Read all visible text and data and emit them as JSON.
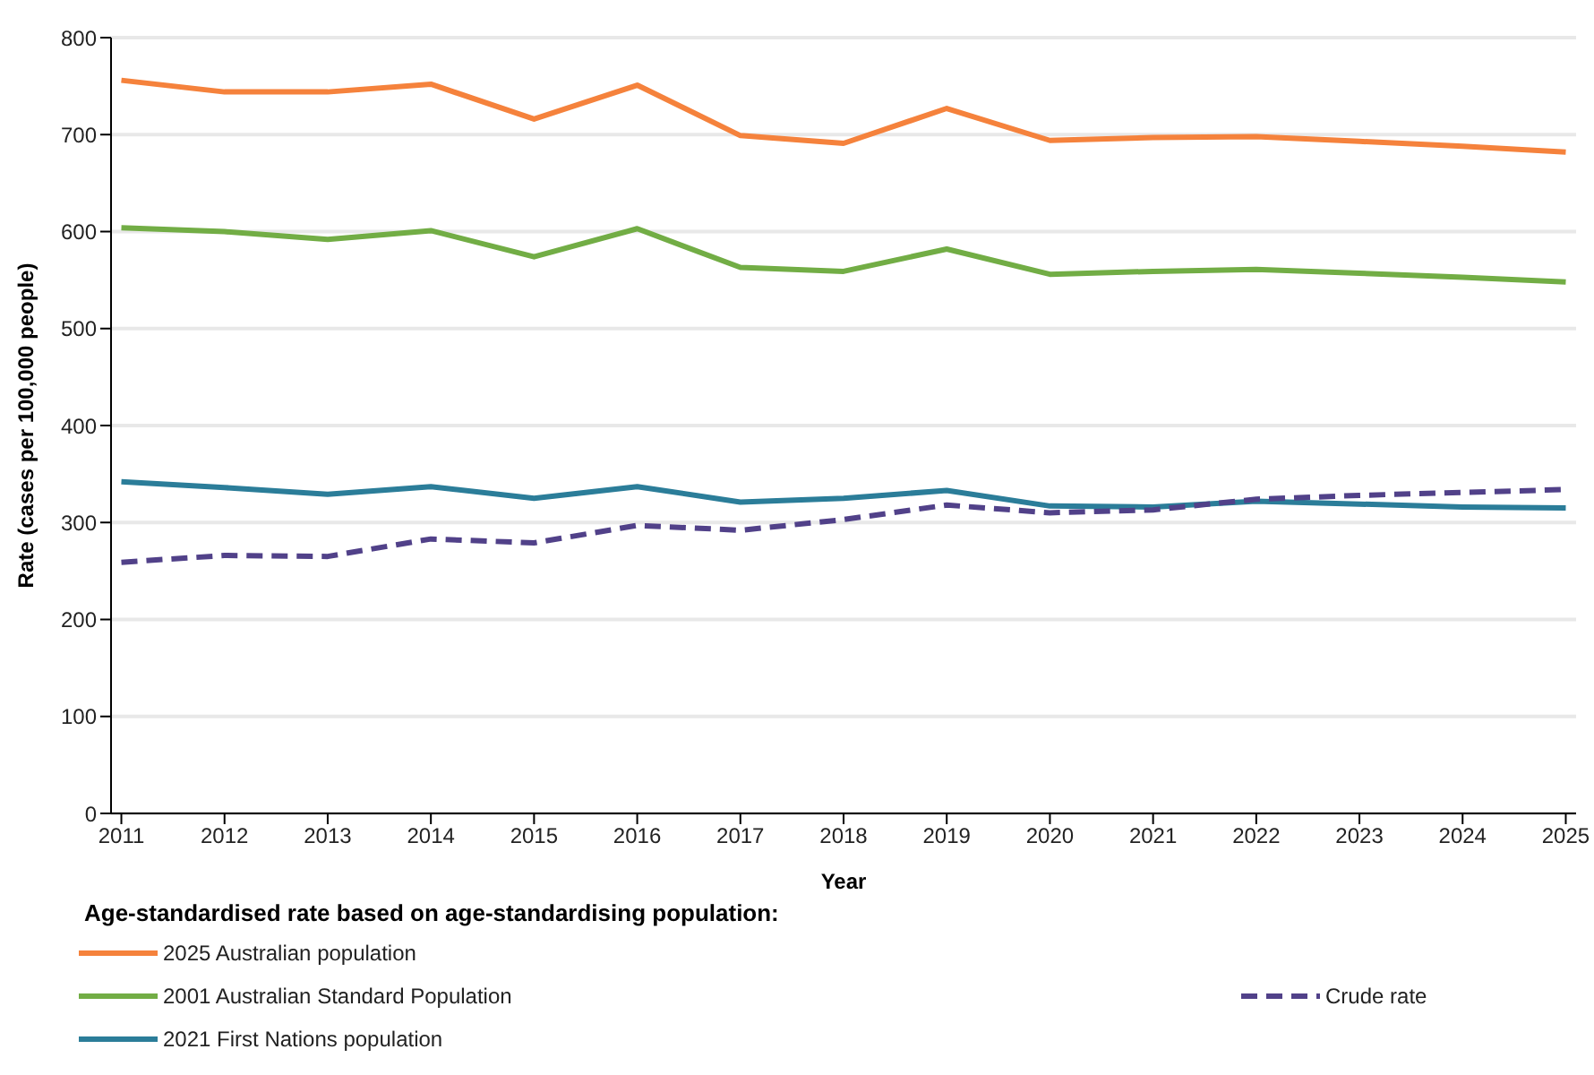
{
  "chart_data": {
    "type": "line",
    "xlabel": "Year",
    "ylabel": "Rate (cases per 100,000 people)",
    "legend_title": "Age-standardised rate based on age-standardising population:",
    "x": [
      2011,
      2012,
      2013,
      2014,
      2015,
      2016,
      2017,
      2018,
      2019,
      2020,
      2021,
      2022,
      2023,
      2024,
      2025
    ],
    "series": [
      {
        "name": "2025 Australian population",
        "color": "#f5823c",
        "values": [
          756,
          744,
          744,
          752,
          716,
          751,
          699,
          691,
          727,
          694,
          697,
          698,
          693,
          688,
          682
        ]
      },
      {
        "name": "2001 Australian Standard Population",
        "color": "#72ad45",
        "values": [
          604,
          600,
          592,
          601,
          574,
          603,
          563,
          559,
          582,
          556,
          559,
          561,
          557,
          553,
          548
        ]
      },
      {
        "name": "2021 First Nations population",
        "color": "#2b7d99",
        "values": [
          342,
          336,
          329,
          337,
          325,
          337,
          321,
          325,
          333,
          317,
          316,
          322,
          319,
          316,
          315
        ]
      },
      {
        "name": "Crude rate",
        "color": "#514189",
        "line_style": "dashed",
        "values": [
          259,
          266,
          265,
          283,
          279,
          297,
          292,
          303,
          318,
          310,
          313,
          324,
          328,
          331,
          334
        ]
      }
    ],
    "xlim": [
      2010.9,
      2025.1
    ],
    "xticks": [
      2011,
      2012,
      2013,
      2014,
      2015,
      2016,
      2017,
      2018,
      2019,
      2020,
      2021,
      2022,
      2023,
      2024,
      2025
    ],
    "ylim": [
      0,
      800
    ],
    "yticks": [
      0,
      100,
      200,
      300,
      400,
      500,
      600,
      700,
      800
    ],
    "grid": "y",
    "legend": "bottom",
    "marker": "none",
    "line_style": "solid"
  }
}
